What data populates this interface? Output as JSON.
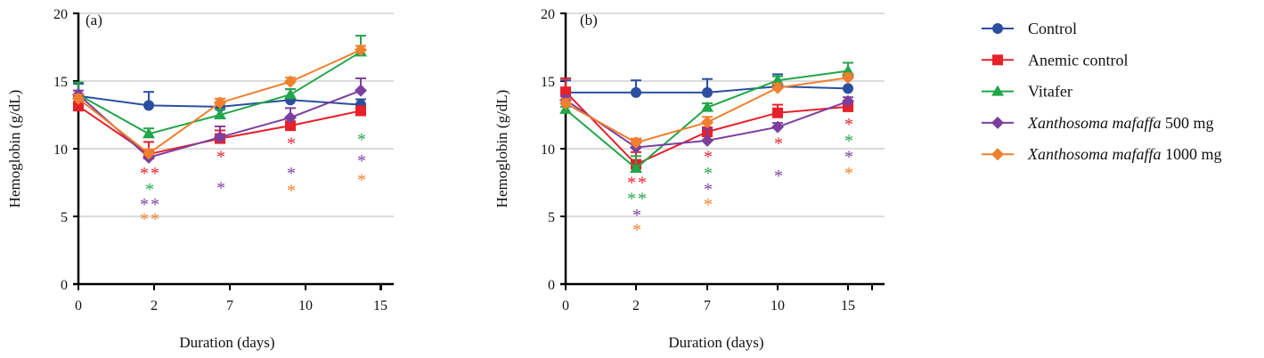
{
  "legend": {
    "items": [
      {
        "label": "Control",
        "italic": "",
        "suffix": ""
      },
      {
        "label": "Anemic control",
        "italic": "",
        "suffix": ""
      },
      {
        "label": "Vitafer",
        "italic": "",
        "suffix": ""
      },
      {
        "label": "",
        "italic": "Xanthosoma mafaffa",
        "suffix": " 500 mg"
      },
      {
        "label": "",
        "italic": "Xanthosoma mafaffa",
        "suffix": " 1000 mg"
      }
    ]
  },
  "chart_data": [
    {
      "type": "line",
      "panel_label": "(a)",
      "xlabel": "Duration (days)",
      "ylabel": "Hemoglobin (g/dL)",
      "categories": [
        "0",
        "2",
        "7",
        "10",
        "15"
      ],
      "ylim": [
        0,
        20
      ],
      "yticks": [
        0,
        5,
        10,
        15,
        20
      ],
      "grid": "horizontal",
      "series": [
        {
          "name": "Control",
          "color": "#2c4ea0",
          "marker": "circle",
          "values": [
            13.9,
            13.2,
            13.1,
            13.6,
            13.25
          ],
          "error": [
            0.9,
            1.0,
            0.3,
            0.8,
            0.4
          ]
        },
        {
          "name": "Anemic control",
          "color": "#e8202a",
          "marker": "square",
          "values": [
            13.15,
            9.6,
            10.75,
            11.7,
            12.8
          ],
          "error": [
            0.3,
            0.9,
            0.6,
            0.3,
            0.3
          ]
        },
        {
          "name": "Vitafer",
          "color": "#22a64a",
          "marker": "triangle",
          "values": [
            14.0,
            11.1,
            12.5,
            14.0,
            17.15
          ],
          "error": [
            0.9,
            0.4,
            0.4,
            0.4,
            1.2
          ]
        },
        {
          "name": "Xanthosoma mafaffa 500 mg",
          "color": "#7d3f9d",
          "marker": "diamond",
          "values": [
            14.0,
            9.35,
            10.85,
            12.3,
            14.3
          ],
          "error": [
            0.3,
            0.3,
            0.8,
            0.7,
            0.9
          ]
        },
        {
          "name": "Xanthosoma mafaffa 1000 mg",
          "color": "#f07f2e",
          "marker": "diamond",
          "values": [
            13.7,
            9.65,
            13.4,
            14.95,
            17.3
          ],
          "error": [
            0.3,
            0.3,
            0.3,
            0.3,
            0.3
          ]
        }
      ],
      "annotations": [
        {
          "category": "2",
          "y": 8.3,
          "text": "**",
          "series": 1
        },
        {
          "category": "2",
          "y": 7.1,
          "text": "*",
          "series": 2
        },
        {
          "category": "2",
          "y": 6.0,
          "text": "**",
          "series": 3
        },
        {
          "category": "2",
          "y": 4.9,
          "text": "**",
          "series": 4
        },
        {
          "category": "7",
          "y": 9.5,
          "text": "*",
          "series": 1
        },
        {
          "category": "7",
          "y": 7.2,
          "text": "*",
          "series": 3
        },
        {
          "category": "10",
          "y": 10.5,
          "text": "*",
          "series": 1
        },
        {
          "category": "10",
          "y": 8.3,
          "text": "*",
          "series": 3
        },
        {
          "category": "10",
          "y": 7.0,
          "text": "*",
          "series": 4
        },
        {
          "category": "15",
          "y": 10.8,
          "text": "*",
          "series": 2
        },
        {
          "category": "15",
          "y": 9.2,
          "text": "*",
          "series": 3
        },
        {
          "category": "15",
          "y": 7.8,
          "text": "*",
          "series": 4
        }
      ]
    },
    {
      "type": "line",
      "panel_label": "(b)",
      "xlabel": "Duration (days)",
      "ylabel": "Hemoglobin (g/dL)",
      "categories": [
        "0",
        "2",
        "7",
        "10",
        "15"
      ],
      "ylim": [
        0,
        20
      ],
      "yticks": [
        0,
        5,
        10,
        15,
        20
      ],
      "grid": "horizontal",
      "series": [
        {
          "name": "Control",
          "color": "#2c4ea0",
          "marker": "circle",
          "values": [
            14.15,
            14.15,
            14.15,
            14.6,
            14.45
          ],
          "error": [
            0.9,
            0.9,
            1.0,
            0.9,
            0.9
          ]
        },
        {
          "name": "Anemic control",
          "color": "#e8202a",
          "marker": "square",
          "values": [
            14.2,
            8.85,
            11.25,
            12.65,
            13.1
          ],
          "error": [
            1.0,
            0.9,
            0.7,
            0.6,
            0.3
          ]
        },
        {
          "name": "Vitafer",
          "color": "#22a64a",
          "marker": "triangle",
          "values": [
            12.9,
            8.55,
            13.05,
            15.05,
            15.75
          ],
          "error": [
            0.2,
            0.9,
            0.3,
            0.3,
            0.6
          ]
        },
        {
          "name": "Xanthosoma mafaffa 500 mg",
          "color": "#7d3f9d",
          "marker": "diamond",
          "values": [
            13.6,
            10.1,
            10.6,
            11.6,
            13.5
          ],
          "error": [
            0.3,
            0.6,
            0.9,
            0.3,
            0.3
          ]
        },
        {
          "name": "Xanthosoma mafaffa 1000 mg",
          "color": "#f07f2e",
          "marker": "diamond",
          "values": [
            13.35,
            10.45,
            11.95,
            14.5,
            15.25
          ],
          "error": [
            0.3,
            0.3,
            0.4,
            0.3,
            0.3
          ]
        }
      ],
      "annotations": [
        {
          "category": "2",
          "y": 7.6,
          "text": "**",
          "series": 1
        },
        {
          "category": "2",
          "y": 6.4,
          "text": "**",
          "series": 2
        },
        {
          "category": "2",
          "y": 5.2,
          "text": "*",
          "series": 3
        },
        {
          "category": "2",
          "y": 4.1,
          "text": "*",
          "series": 4
        },
        {
          "category": "7",
          "y": 9.5,
          "text": "*",
          "series": 1
        },
        {
          "category": "7",
          "y": 8.3,
          "text": "*",
          "series": 2
        },
        {
          "category": "7",
          "y": 7.1,
          "text": "*",
          "series": 3
        },
        {
          "category": "7",
          "y": 6.0,
          "text": "*",
          "series": 4
        },
        {
          "category": "10",
          "y": 10.5,
          "text": "*",
          "series": 1
        },
        {
          "category": "10",
          "y": 8.1,
          "text": "*",
          "series": 3
        },
        {
          "category": "15",
          "y": 11.9,
          "text": "*",
          "series": 1
        },
        {
          "category": "15",
          "y": 10.7,
          "text": "*",
          "series": 2
        },
        {
          "category": "15",
          "y": 9.5,
          "text": "*",
          "series": 3
        },
        {
          "category": "15",
          "y": 8.3,
          "text": "*",
          "series": 4
        }
      ]
    }
  ]
}
